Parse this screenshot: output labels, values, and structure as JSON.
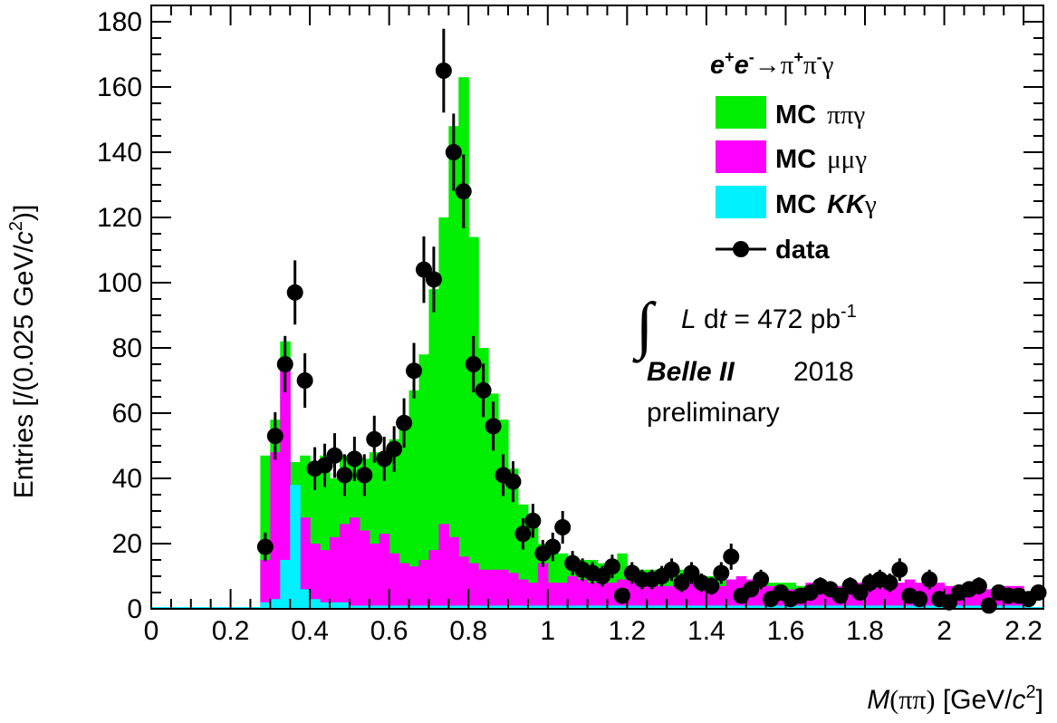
{
  "chart_data": {
    "type": "bar",
    "stacked_histogram": true,
    "xlabel_parts": {
      "var": "M",
      "paren": "(ππ)",
      "unit": " [GeV/",
      "c": "c",
      "sup": "2",
      "close": "]"
    },
    "ylabel_parts": {
      "pre": "Entries [/(0.025 GeV/",
      "c": "c",
      "sup": "2",
      "close": ")]"
    },
    "xlim": [
      0,
      2.25
    ],
    "ylim": [
      0,
      185
    ],
    "bin_width": 0.025,
    "x_ticks": [
      "0",
      "0.2",
      "0.4",
      "0.6",
      "0.8",
      "1",
      "1.2",
      "1.4",
      "1.6",
      "1.8",
      "2",
      "2.2"
    ],
    "y_ticks": [
      "0",
      "20",
      "40",
      "60",
      "80",
      "100",
      "120",
      "140",
      "160",
      "180"
    ],
    "colors": {
      "pipi": "#00ee00",
      "mumu": "#ff00ff",
      "kk": "#00f0ff",
      "data": "#000000"
    },
    "legend": {
      "placement": "top-right",
      "process": {
        "e1": "e",
        "s1": "+",
        "e2": "e",
        "s2": "-",
        "arrow": "→π",
        "s3": "+",
        "pi": "π",
        "s4": "-",
        "g": "γ"
      },
      "entries": [
        {
          "key": "pipi",
          "mc": "MC",
          "label": "ππγ"
        },
        {
          "key": "mumu",
          "mc": "MC",
          "label": "μμγ"
        },
        {
          "key": "kk",
          "mc": "MC",
          "kk": "KK",
          "label": "γ"
        },
        {
          "key": "data",
          "label": "data"
        }
      ]
    },
    "annotations": {
      "integral": "∫",
      "lumi": {
        "L": "L",
        "dt": " d",
        "t": "t",
        "rest": " = 472 pb",
        "sup": "-1"
      },
      "experiment": "Belle II",
      "year": "2018",
      "status": "preliminary"
    },
    "series": [
      {
        "name": "MC ππγ",
        "bin_start": 0.275,
        "values": [
          47,
          58,
          82,
          45,
          47,
          45,
          47,
          40,
          47,
          44,
          46,
          48,
          48,
          52,
          55,
          67,
          78,
          98,
          120,
          148,
          163,
          114,
          80,
          66,
          58,
          43,
          32,
          27,
          20,
          18,
          17,
          16,
          15,
          15,
          14,
          14,
          17,
          13,
          12,
          12,
          11,
          11,
          12,
          11,
          9,
          10,
          9,
          9,
          8,
          8,
          8,
          8,
          8,
          8,
          7,
          7,
          7,
          7,
          7,
          7,
          7,
          7,
          6,
          7,
          6,
          6,
          6,
          6,
          6,
          6,
          6,
          6,
          6,
          5,
          5,
          5,
          5
        ]
      },
      {
        "name": "MC μμγ",
        "bin_start": 0.275,
        "values": [
          15,
          48,
          76,
          30,
          28,
          20,
          18,
          22,
          26,
          28,
          24,
          20,
          23,
          17,
          14,
          13,
          15,
          18,
          26,
          22,
          16,
          14,
          12,
          12,
          12,
          11,
          9,
          8,
          14,
          8,
          8,
          10,
          9,
          8,
          8,
          8,
          9,
          9,
          8,
          8,
          7,
          7,
          9,
          9,
          8,
          8,
          7,
          9,
          10,
          9,
          8,
          7,
          7,
          6,
          6,
          8,
          7,
          6,
          7,
          7,
          8,
          8,
          7,
          8,
          8,
          9,
          8,
          7,
          8,
          7,
          6,
          7,
          8,
          6,
          6,
          7,
          7
        ]
      },
      {
        "name": "MC KKγ",
        "bin_start": 0.275,
        "values": [
          2,
          3,
          15,
          38,
          6,
          3,
          2,
          2,
          2,
          1,
          1,
          1,
          1,
          1,
          1,
          1,
          1,
          1,
          1,
          1,
          1,
          1,
          1,
          1,
          1,
          1,
          1,
          1,
          1,
          1,
          1,
          1,
          1,
          1,
          1,
          1,
          1,
          1,
          1,
          1,
          1,
          1,
          1,
          1,
          1,
          1,
          1,
          1,
          1,
          1,
          1,
          1,
          1,
          1,
          1,
          1,
          1,
          1,
          1,
          1,
          1,
          1,
          1,
          1,
          1,
          1,
          1,
          1,
          1,
          1,
          1,
          1,
          1,
          1,
          1,
          1,
          1
        ]
      },
      {
        "name": "data",
        "bin_start": 0.2875,
        "values": [
          19,
          53,
          75,
          97,
          70,
          43,
          44,
          47,
          41,
          46,
          41,
          52,
          46,
          49,
          57,
          73,
          104,
          101,
          165,
          140,
          128,
          75,
          67,
          56,
          41,
          39,
          23,
          27,
          17,
          19,
          25,
          14,
          12,
          11,
          10,
          13,
          4,
          11,
          9,
          9,
          10,
          12,
          8,
          11,
          8,
          7,
          11,
          16,
          4,
          6,
          9,
          3,
          5,
          3,
          4,
          5,
          7,
          6,
          4,
          7,
          5,
          8,
          9,
          8,
          12,
          4,
          3,
          9,
          3,
          2,
          5,
          6,
          7,
          1,
          5,
          4,
          4,
          3,
          5
        ]
      }
    ]
  }
}
